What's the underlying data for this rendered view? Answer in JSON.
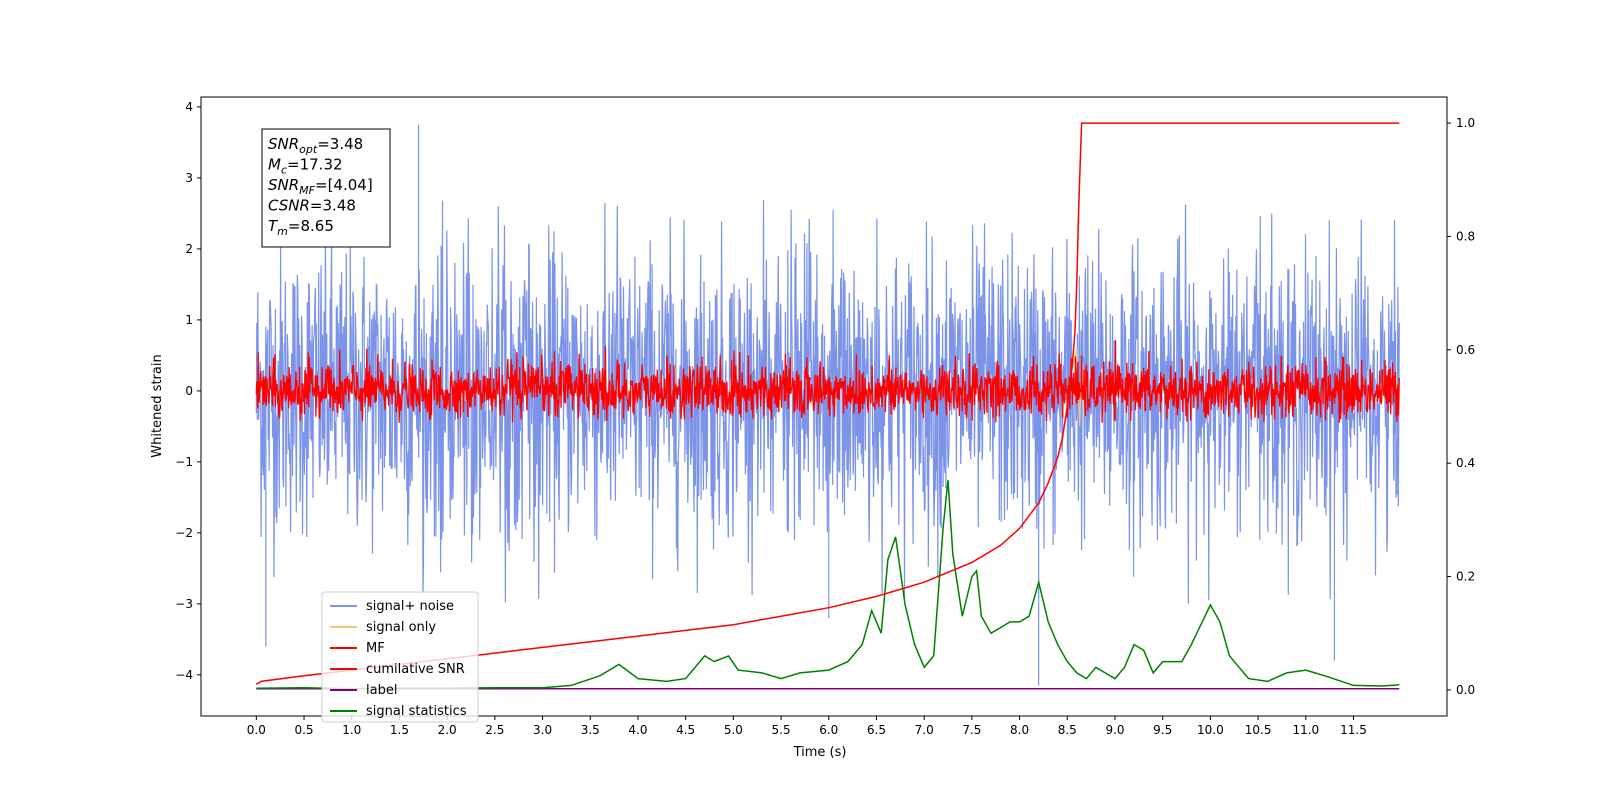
{
  "chart_data": {
    "type": "line",
    "xlabel": "Time (s)",
    "ylabel": "Whitened strain",
    "ylabel_right": "",
    "xlim": [
      -0.58,
      12.48
    ],
    "ylim": [
      -4.58,
      4.14
    ],
    "ylim_right": [
      -0.046,
      1.046
    ],
    "x_ticks": [
      "0.0",
      "0.5",
      "1.0",
      "1.5",
      "2.0",
      "2.5",
      "3.0",
      "3.5",
      "4.0",
      "4.5",
      "5.0",
      "5.5",
      "6.0",
      "6.5",
      "7.0",
      "7.5",
      "8.0",
      "8.5",
      "9.0",
      "9.5",
      "10.0",
      "10.5",
      "11.0",
      "11.5"
    ],
    "y_ticks": [
      "4",
      "3",
      "2",
      "1",
      "0",
      "−1",
      "−2",
      "−3",
      "−4"
    ],
    "y_ticks_right": [
      "1.0",
      "0.8",
      "0.6",
      "0.4",
      "0.2",
      "0.0"
    ],
    "legend_position": "lower-left",
    "annotation": {
      "lines": [
        {
          "sym": "SNR",
          "sub": "opt",
          "value": "=3.48"
        },
        {
          "sym": "M",
          "sub": "c",
          "value": "=17.32"
        },
        {
          "sym": "SNR",
          "sub": "MF",
          "value": "=[4.04]"
        },
        {
          "sym": "CSNR",
          "sub": "",
          "value": "=3.48"
        },
        {
          "sym": "T",
          "sub": "m",
          "value": "=8.65"
        }
      ]
    },
    "series": [
      {
        "name": "signal+ noise",
        "color": "#7b93e8",
        "axis": "left",
        "description_values": {
          "t_start": 0.0,
          "t_end": 11.98,
          "amplitude_std": 1.0,
          "typical_max": 2.5,
          "min_spike": -4.15,
          "max_spike": 3.75
        }
      },
      {
        "name": "signal only",
        "color": "#f5c97a",
        "axis": "left",
        "points": [
          [
            8.55,
            0.3
          ],
          [
            8.6,
            0.6
          ],
          [
            8.63,
            -0.5
          ],
          [
            8.65,
            0.4
          ],
          [
            8.68,
            0.0
          ]
        ]
      },
      {
        "name": "MF",
        "color": "#ff0000",
        "axis": "left",
        "description_values": {
          "t_start": 0.0,
          "t_end": 11.98,
          "amplitude_std": 0.2,
          "max": 1.0,
          "min": -0.45
        }
      },
      {
        "name": "cumilative SNR",
        "color": "#ff0000",
        "axis": "right",
        "points": [
          [
            0.0,
            0.01
          ],
          [
            0.05,
            0.015
          ],
          [
            0.5,
            0.025
          ],
          [
            1.0,
            0.035
          ],
          [
            1.5,
            0.045
          ],
          [
            2.0,
            0.055
          ],
          [
            2.5,
            0.065
          ],
          [
            3.0,
            0.075
          ],
          [
            3.5,
            0.085
          ],
          [
            4.0,
            0.095
          ],
          [
            4.5,
            0.105
          ],
          [
            5.0,
            0.115
          ],
          [
            5.5,
            0.13
          ],
          [
            6.0,
            0.145
          ],
          [
            6.5,
            0.165
          ],
          [
            7.0,
            0.19
          ],
          [
            7.5,
            0.225
          ],
          [
            7.8,
            0.255
          ],
          [
            8.0,
            0.285
          ],
          [
            8.2,
            0.33
          ],
          [
            8.3,
            0.365
          ],
          [
            8.4,
            0.41
          ],
          [
            8.45,
            0.445
          ],
          [
            8.5,
            0.5
          ],
          [
            8.55,
            0.57
          ],
          [
            8.58,
            0.63
          ],
          [
            8.6,
            0.72
          ],
          [
            8.62,
            0.85
          ],
          [
            8.64,
            0.95
          ],
          [
            8.65,
            1.0
          ],
          [
            11.98,
            1.0
          ]
        ]
      },
      {
        "name": "label",
        "color": "#800080",
        "axis": "right",
        "points": [
          [
            0.0,
            0.002
          ],
          [
            11.98,
            0.002
          ]
        ]
      },
      {
        "name": "signal statistics",
        "color": "#008000",
        "axis": "right",
        "points": [
          [
            0.0,
            0.003
          ],
          [
            0.5,
            0.004
          ],
          [
            1.0,
            0.002
          ],
          [
            1.5,
            0.003
          ],
          [
            2.0,
            0.003
          ],
          [
            2.5,
            0.004
          ],
          [
            3.0,
            0.004
          ],
          [
            3.3,
            0.008
          ],
          [
            3.6,
            0.025
          ],
          [
            3.8,
            0.045
          ],
          [
            4.0,
            0.02
          ],
          [
            4.3,
            0.015
          ],
          [
            4.5,
            0.02
          ],
          [
            4.7,
            0.06
          ],
          [
            4.8,
            0.05
          ],
          [
            4.95,
            0.06
          ],
          [
            5.05,
            0.035
          ],
          [
            5.3,
            0.03
          ],
          [
            5.5,
            0.02
          ],
          [
            5.7,
            0.03
          ],
          [
            6.0,
            0.035
          ],
          [
            6.2,
            0.05
          ],
          [
            6.35,
            0.08
          ],
          [
            6.45,
            0.14
          ],
          [
            6.55,
            0.1
          ],
          [
            6.62,
            0.23
          ],
          [
            6.7,
            0.27
          ],
          [
            6.8,
            0.15
          ],
          [
            6.9,
            0.08
          ],
          [
            7.0,
            0.04
          ],
          [
            7.1,
            0.06
          ],
          [
            7.2,
            0.29
          ],
          [
            7.25,
            0.37
          ],
          [
            7.3,
            0.24
          ],
          [
            7.4,
            0.13
          ],
          [
            7.5,
            0.2
          ],
          [
            7.55,
            0.21
          ],
          [
            7.6,
            0.13
          ],
          [
            7.7,
            0.1
          ],
          [
            7.8,
            0.11
          ],
          [
            7.9,
            0.12
          ],
          [
            8.0,
            0.12
          ],
          [
            8.1,
            0.13
          ],
          [
            8.2,
            0.19
          ],
          [
            8.3,
            0.12
          ],
          [
            8.4,
            0.08
          ],
          [
            8.5,
            0.05
          ],
          [
            8.6,
            0.03
          ],
          [
            8.7,
            0.02
          ],
          [
            8.8,
            0.04
          ],
          [
            9.0,
            0.02
          ],
          [
            9.1,
            0.04
          ],
          [
            9.2,
            0.08
          ],
          [
            9.3,
            0.07
          ],
          [
            9.4,
            0.03
          ],
          [
            9.5,
            0.05
          ],
          [
            9.7,
            0.05
          ],
          [
            9.8,
            0.08
          ],
          [
            10.0,
            0.15
          ],
          [
            10.1,
            0.12
          ],
          [
            10.2,
            0.06
          ],
          [
            10.4,
            0.02
          ],
          [
            10.6,
            0.015
          ],
          [
            10.8,
            0.03
          ],
          [
            11.0,
            0.035
          ],
          [
            11.2,
            0.025
          ],
          [
            11.5,
            0.008
          ],
          [
            11.8,
            0.007
          ],
          [
            11.98,
            0.009
          ]
        ]
      }
    ]
  }
}
